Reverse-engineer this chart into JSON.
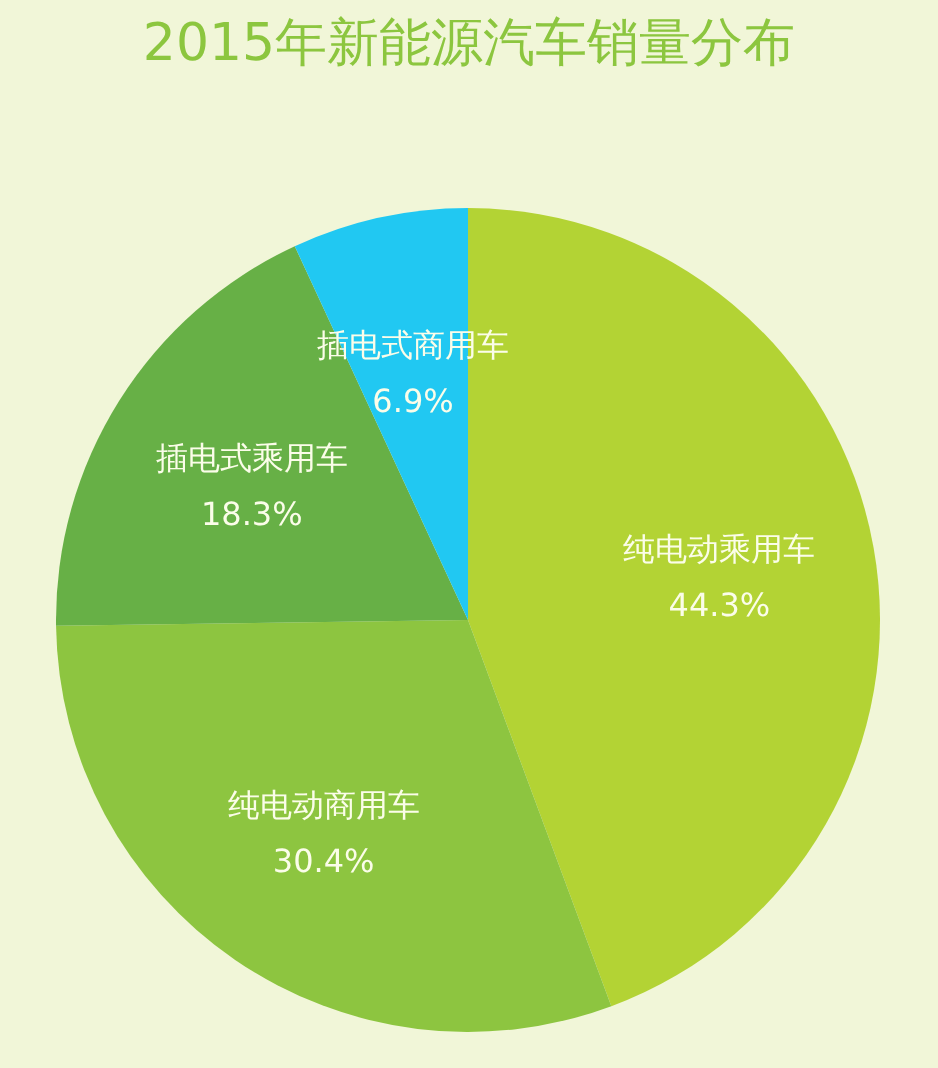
{
  "chart_data": {
    "type": "pie",
    "title": "2015年新能源汽车销量分布",
    "categories": [
      "纯电动乘用车",
      "纯电动商用车",
      "插电式乘用车",
      "插电式商用车"
    ],
    "values": [
      44.3,
      30.4,
      18.3,
      6.9
    ],
    "value_labels": [
      "44.3%",
      "30.4%",
      "18.3%",
      "6.9%"
    ],
    "colors": [
      "#b3d334",
      "#8dc540",
      "#67b046",
      "#21c8f2"
    ],
    "legend": false
  }
}
